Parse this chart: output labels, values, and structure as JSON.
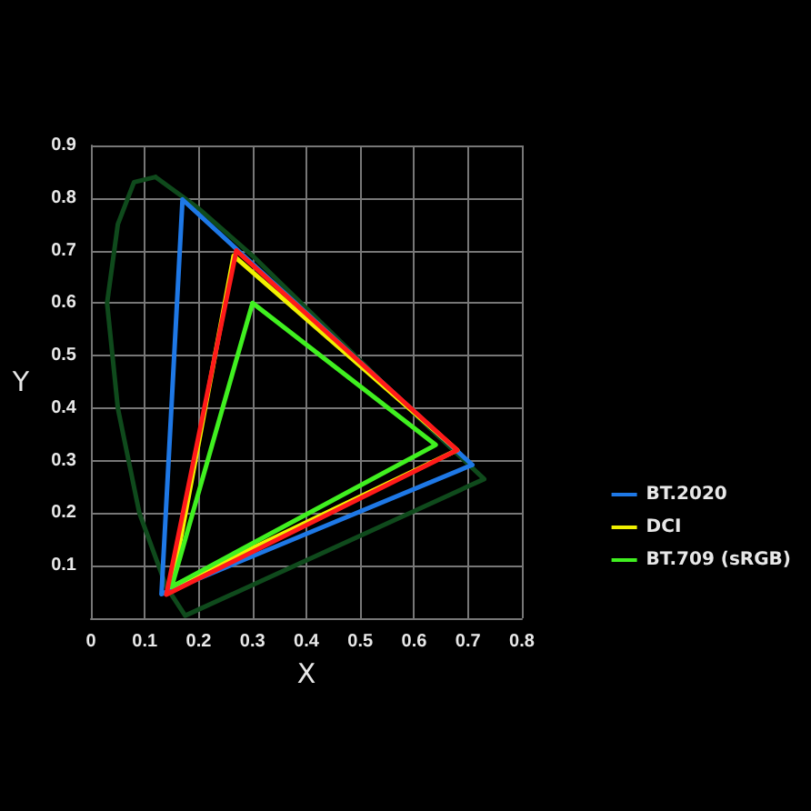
{
  "chart_data": {
    "type": "line",
    "xlabel": "X",
    "ylabel": "Y",
    "xlim": [
      0,
      0.8
    ],
    "ylim": [
      0,
      0.9
    ],
    "xticks": [
      0,
      0.1,
      0.2,
      0.3,
      0.4,
      0.5,
      0.6,
      0.7,
      0.8
    ],
    "yticks": [
      0.1,
      0.2,
      0.3,
      0.4,
      0.5,
      0.6,
      0.7,
      0.8,
      0.9
    ],
    "grid": true,
    "legend": "right",
    "marker": "none",
    "line_style": "solid",
    "series": [
      {
        "color": "#0f4a1c",
        "x": [
          0.175,
          0.14,
          0.09,
          0.05,
          0.03,
          null,
          0.03,
          0.05,
          0.08,
          0.12,
          null,
          0.12,
          0.2,
          0.3,
          0.4,
          0.5,
          0.6,
          0.73,
          null,
          0.73,
          0.175
        ],
        "values": [
          0.005,
          0.06,
          0.2,
          0.4,
          0.6,
          null,
          0.6,
          0.75,
          0.83,
          0.84,
          null,
          0.84,
          0.78,
          0.69,
          0.59,
          0.49,
          0.39,
          0.265,
          null,
          0.265,
          0.005
        ]
      },
      {
        "name": "BT.2020",
        "color": "#1e78e6",
        "x": [
          0.708,
          0.17,
          null,
          0.17,
          0.131,
          null,
          0.131,
          0.708
        ],
        "values": [
          0.292,
          0.797,
          null,
          0.797,
          0.046,
          null,
          0.046,
          0.292
        ]
      },
      {
        "name": "DCI",
        "color": "#f0f000",
        "x": [
          0.68,
          0.265,
          null,
          0.265,
          0.15,
          null,
          0.15,
          0.68
        ],
        "values": [
          0.32,
          0.69,
          null,
          0.69,
          0.06,
          null,
          0.06,
          0.32
        ]
      },
      {
        "name": "BT.709 (sRGB)",
        "color": "#40f020",
        "x": [
          0.64,
          0.3,
          null,
          0.3,
          0.15,
          null,
          0.15,
          0.64
        ],
        "values": [
          0.33,
          0.6,
          null,
          0.6,
          0.06,
          null,
          0.06,
          0.33
        ]
      },
      {
        "color": "#ff1a1a",
        "x": [
          0.68,
          0.27,
          null,
          0.27,
          0.14,
          null,
          0.14,
          0.68
        ],
        "values": [
          0.32,
          0.7,
          null,
          0.7,
          0.045,
          null,
          0.045,
          0.32
        ]
      }
    ]
  }
}
